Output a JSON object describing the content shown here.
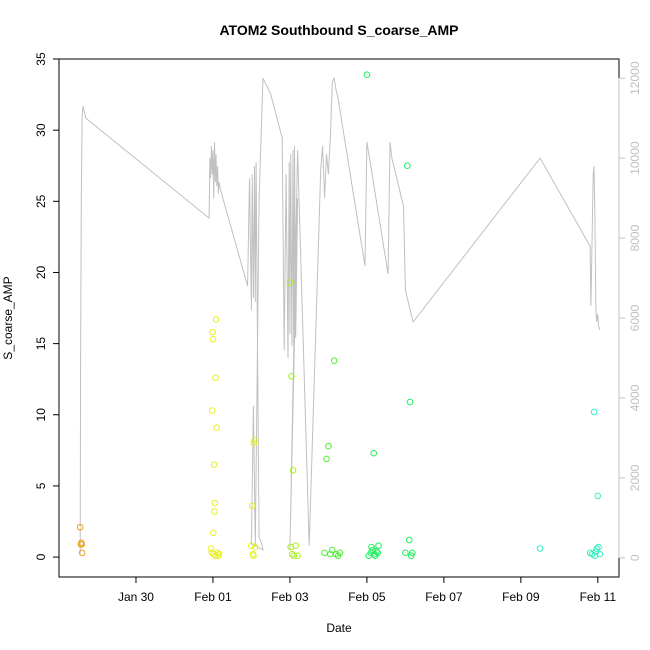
{
  "chart_data": {
    "type": "scatter",
    "title": "ATOM2 Southbound S_coarse_AMP",
    "xlabel": "Date",
    "ylabel": "S_coarse_AMP",
    "xlim_days": [
      28.0,
      42.55
    ],
    "ylim": [
      -1.4,
      35.0
    ],
    "y2lim": [
      -480,
      12480
    ],
    "x_tick_labels": [
      "Jan 30",
      "Feb 01",
      "Feb 03",
      "Feb 05",
      "Feb 07",
      "Feb 09",
      "Feb 11"
    ],
    "x_tick_days": [
      30,
      32,
      34,
      36,
      38,
      40,
      42
    ],
    "y_ticks": [
      0,
      5,
      10,
      15,
      20,
      25,
      30,
      35
    ],
    "y2_ticks": [
      0,
      2000,
      4000,
      6000,
      8000,
      10000,
      12000
    ],
    "colors": {
      "line": "#c0c0c0",
      "orange": "#f0a020",
      "yellow": "#e8f020",
      "yellow_green": "#a8f020",
      "green": "#50f030",
      "bright_green": "#20f060",
      "teal": "#30f0c0"
    },
    "series": [
      {
        "color": "#f0a020",
        "x": [
          28.55,
          28.57,
          28.58,
          28.59,
          28.6
        ],
        "y": [
          2.1,
          0.9,
          1.0,
          0.9,
          0.3
        ]
      },
      {
        "color": "#e8f020",
        "x": [
          31.95,
          31.97,
          31.98,
          31.99,
          32.0,
          32.01,
          32.02,
          32.03,
          32.04,
          32.05,
          32.06,
          32.07,
          32.08,
          32.1,
          32.12,
          32.14,
          32.16,
          33.0,
          33.02,
          33.04,
          33.05,
          33.06,
          33.08,
          33.1
        ],
        "y": [
          0.6,
          0.3,
          10.3,
          15.8,
          15.3,
          1.7,
          0.2,
          6.5,
          3.2,
          3.8,
          0.1,
          12.6,
          16.7,
          9.1,
          0.3,
          0.1,
          0.2,
          0.8,
          3.6,
          0.2,
          0.1,
          8.0,
          8.2,
          0.7
        ]
      },
      {
        "color": "#a8f020",
        "x": [
          34.0,
          34.02,
          34.04,
          34.06,
          34.08,
          34.1,
          34.15,
          34.2
        ],
        "y": [
          19.3,
          0.7,
          12.7,
          0.2,
          6.1,
          0.1,
          0.8,
          0.1
        ]
      },
      {
        "color": "#50f030",
        "x": [
          34.9,
          34.95,
          35.0,
          35.05,
          35.1,
          35.15,
          35.2,
          35.25,
          35.3
        ],
        "y": [
          0.3,
          6.9,
          7.8,
          0.2,
          0.5,
          13.8,
          0.2,
          0.1,
          0.3
        ]
      },
      {
        "color": "#20f060",
        "x": [
          36.0,
          36.05,
          36.1,
          36.12,
          36.15,
          36.18,
          36.2,
          36.22,
          36.25,
          36.28,
          36.3,
          37.0,
          37.05,
          37.1,
          37.12,
          37.15,
          37.18
        ],
        "y": [
          33.9,
          0.1,
          0.3,
          0.7,
          0.5,
          7.3,
          0.2,
          0.1,
          0.4,
          0.3,
          0.8,
          0.3,
          27.5,
          1.2,
          10.9,
          0.1,
          0.3
        ]
      },
      {
        "color": "#30f0c0",
        "x": [
          40.5,
          41.8,
          41.85,
          41.9,
          41.92,
          41.95,
          41.97,
          42.0,
          42.02,
          42.05
        ],
        "y": [
          0.6,
          0.3,
          0.2,
          10.2,
          0.1,
          0.4,
          0.6,
          4.3,
          0.7,
          0.2
        ]
      }
    ],
    "secondary_line": {
      "color": "#c0c0c0",
      "x": [
        28.55,
        28.56,
        28.58,
        28.6,
        28.62,
        28.65,
        28.7,
        31.9,
        31.92,
        31.94,
        31.96,
        31.98,
        32.0,
        32.02,
        32.04,
        32.06,
        32.08,
        32.1,
        32.12,
        32.14,
        32.16,
        32.2,
        32.9,
        32.95,
        33.0,
        33.02,
        33.05,
        33.08,
        33.1,
        33.12,
        33.15,
        33.2,
        33.25,
        33.3,
        33.0,
        33.05,
        33.1,
        33.2,
        33.3,
        33.5,
        33.8,
        33.85,
        33.9,
        33.95,
        33.98,
        34.0,
        34.02,
        34.05,
        34.08,
        34.1,
        34.12,
        34.15,
        34.2,
        34.0,
        34.2,
        34.5,
        34.8,
        34.85,
        34.9,
        34.95,
        35.0,
        35.05,
        35.1,
        35.15,
        35.2,
        35.25,
        35.3,
        35.35,
        35.4,
        35.45,
        35.5,
        35.55,
        35.6,
        35.65,
        35.7,
        35.75,
        35.8,
        35.85,
        35.9,
        35.95,
        36.0,
        36.05,
        36.1,
        36.15,
        36.2,
        36.25,
        36.3,
        36.35,
        36.4,
        36.45,
        36.5,
        36.55,
        36.6,
        36.65,
        36.7,
        36.75,
        36.8,
        36.85,
        36.9,
        36.95,
        37.0,
        37.05,
        37.1,
        37.15,
        37.2,
        40.5,
        41.8,
        41.82,
        41.85,
        41.88,
        41.9,
        41.92,
        41.95,
        41.97,
        42.0,
        42.02,
        42.05
      ],
      "y2": [
        100,
        5000,
        9000,
        11000,
        11300,
        11200,
        11000,
        8500,
        10000,
        9500,
        10300,
        9600,
        10200,
        9000,
        10400,
        9400,
        10100,
        9300,
        9800,
        9100,
        9400,
        9200,
        6800,
        9500,
        6200,
        9600,
        6500,
        9800,
        6400,
        9900,
        6300,
        500,
        400,
        200,
        350,
        3800,
        300,
        9000,
        12000,
        11600,
        10500,
        5200,
        9600,
        5000,
        9900,
        5600,
        10100,
        5300,
        10200,
        4800,
        10300,
        5500,
        9000,
        200,
        10200,
        300,
        9700,
        10300,
        9000,
        10100,
        9600,
        10500,
        11900,
        12000,
        11700,
        11500,
        11200,
        10900,
        10600,
        10300,
        10000,
        9700,
        9400,
        9100,
        8800,
        8500,
        8200,
        7900,
        7600,
        7300,
        10400,
        10100,
        9800,
        9500,
        9200,
        8900,
        8600,
        8300,
        8000,
        7700,
        7400,
        7100,
        10400,
        10000,
        9800,
        9600,
        9400,
        9200,
        9000,
        8800,
        6700,
        6500,
        6300,
        6100,
        5900,
        10000,
        7800,
        6300,
        8000,
        9600,
        9800,
        8700,
        6200,
        5900,
        6100,
        5800,
        5700
      ]
    }
  }
}
